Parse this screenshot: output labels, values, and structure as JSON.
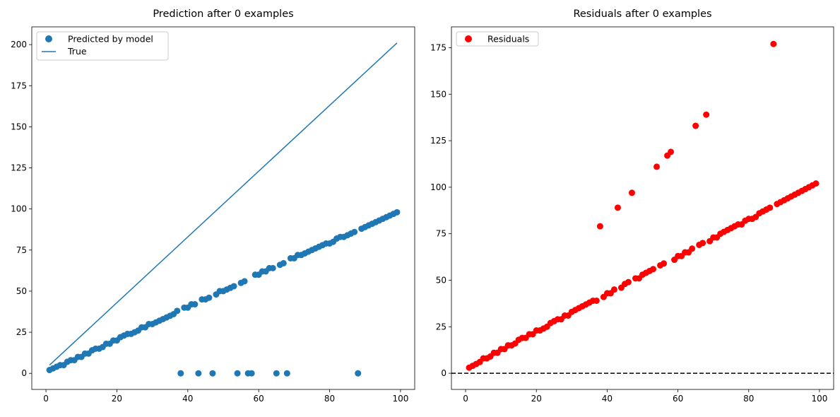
{
  "chart_data": [
    {
      "type": "scatter",
      "title": "Prediction after 0 examples",
      "xlabel": "",
      "ylabel": "",
      "xlim": [
        -4.0,
        104.0
      ],
      "ylim": [
        -9.8,
        210.8
      ],
      "xticks": [
        0,
        20,
        40,
        60,
        80,
        100
      ],
      "yticks": [
        0,
        25,
        50,
        75,
        100,
        125,
        150,
        175,
        200
      ],
      "grid": false,
      "legend": "top-left",
      "series": [
        {
          "name": "Predicted by model",
          "kind": "scatter",
          "color": "#1f77b4",
          "x": [
            1,
            2,
            3,
            4,
            5,
            6,
            7,
            8,
            9,
            10,
            11,
            12,
            13,
            14,
            15,
            16,
            17,
            18,
            19,
            20,
            21,
            22,
            23,
            24,
            25,
            26,
            27,
            28,
            29,
            30,
            31,
            32,
            33,
            34,
            35,
            36,
            37,
            38,
            39,
            40,
            41,
            42,
            43,
            44,
            45,
            46,
            47,
            48,
            49,
            50,
            51,
            52,
            53,
            54,
            55,
            56,
            57,
            58,
            59,
            60,
            61,
            62,
            63,
            64,
            65,
            66,
            67,
            68,
            69,
            70,
            71,
            72,
            73,
            74,
            75,
            76,
            77,
            78,
            79,
            80,
            81,
            82,
            83,
            84,
            85,
            86,
            87,
            88,
            89,
            90,
            91,
            92,
            93,
            94,
            95,
            96,
            97,
            98,
            99
          ],
          "y": [
            2,
            3,
            4,
            5,
            5,
            7,
            8,
            8,
            10,
            10,
            12,
            12,
            14,
            15,
            15,
            16,
            18,
            18,
            20,
            20,
            22,
            23,
            24,
            24,
            25,
            26,
            28,
            28,
            30,
            30,
            31,
            32,
            33,
            34,
            35,
            36,
            38,
            0,
            40,
            40,
            42,
            42,
            0,
            45,
            45,
            46,
            0,
            48,
            50,
            50,
            51,
            52,
            53,
            0,
            55,
            56,
            0,
            0,
            60,
            60,
            62,
            62,
            64,
            64,
            0,
            66,
            67,
            0,
            70,
            70,
            72,
            72,
            73,
            74,
            75,
            76,
            77,
            78,
            79,
            79,
            80,
            82,
            83,
            83,
            84,
            85,
            86,
            0,
            88,
            89,
            90,
            91,
            92,
            93,
            94,
            95,
            96,
            97,
            98
          ]
        },
        {
          "name": "True",
          "kind": "line",
          "color": "#1f77b4",
          "x": [
            1,
            99
          ],
          "y": [
            5,
            201
          ]
        }
      ]
    },
    {
      "type": "scatter",
      "title": "Residuals after 0 examples",
      "xlabel": "",
      "ylabel": "",
      "xlim": [
        -4.0,
        104.0
      ],
      "ylim": [
        -8.7,
        186.2
      ],
      "xticks": [
        0,
        20,
        40,
        60,
        80,
        100
      ],
      "yticks": [
        0,
        25,
        50,
        75,
        100,
        125,
        150,
        175
      ],
      "grid": false,
      "legend": "top-left",
      "hline": {
        "y": 0,
        "style": "dashed",
        "color": "#000000"
      },
      "series": [
        {
          "name": "Residuals",
          "kind": "scatter",
          "color": "#ff0000",
          "x": [
            1,
            2,
            3,
            4,
            5,
            6,
            7,
            8,
            9,
            10,
            11,
            12,
            13,
            14,
            15,
            16,
            17,
            18,
            19,
            20,
            21,
            22,
            23,
            24,
            25,
            26,
            27,
            28,
            29,
            30,
            31,
            32,
            33,
            34,
            35,
            36,
            37,
            38,
            39,
            40,
            41,
            42,
            43,
            44,
            45,
            46,
            47,
            48,
            49,
            50,
            51,
            52,
            53,
            54,
            55,
            56,
            57,
            58,
            59,
            60,
            61,
            62,
            63,
            64,
            65,
            66,
            67,
            68,
            69,
            70,
            71,
            72,
            73,
            74,
            75,
            76,
            77,
            78,
            79,
            80,
            81,
            82,
            83,
            84,
            85,
            86,
            87,
            88,
            89,
            90,
            91,
            92,
            93,
            94,
            95,
            96,
            97,
            98,
            99
          ],
          "y": [
            3,
            4,
            5,
            6,
            8,
            8,
            9,
            11,
            11,
            13,
            13,
            15,
            15,
            16,
            18,
            19,
            19,
            21,
            21,
            23,
            23,
            24,
            25,
            27,
            28,
            29,
            29,
            31,
            31,
            33,
            34,
            35,
            36,
            37,
            38,
            39,
            39,
            79,
            41,
            43,
            43,
            45,
            89,
            46,
            48,
            49,
            97,
            51,
            51,
            53,
            54,
            55,
            56,
            111,
            58,
            59,
            117,
            119,
            61,
            63,
            63,
            65,
            65,
            67,
            133,
            69,
            70,
            139,
            71,
            73,
            73,
            75,
            76,
            77,
            78,
            79,
            80,
            80,
            82,
            83,
            83,
            84,
            86,
            87,
            88,
            89,
            177,
            91,
            92,
            93,
            94,
            95,
            96,
            97,
            98,
            99,
            100,
            101,
            102
          ]
        }
      ]
    }
  ]
}
